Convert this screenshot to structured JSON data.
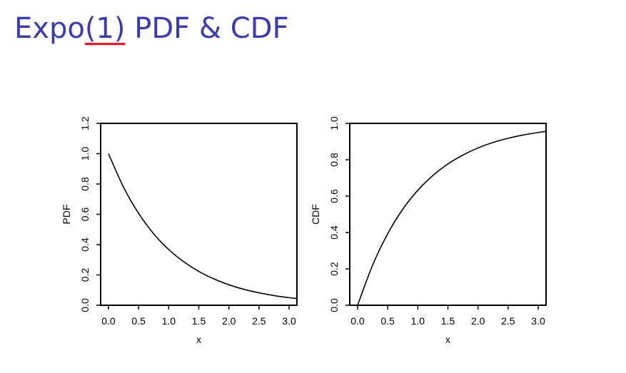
{
  "title": {
    "prefix": "Expo",
    "underlined": "(1)",
    "suffix": " PDF & CDF"
  },
  "chart_data": [
    {
      "type": "line",
      "xlabel": "x",
      "ylabel": "PDF",
      "xlim": [
        -0.13,
        3.13
      ],
      "ylim": [
        0,
        1.2
      ],
      "xticks": [
        "0.0",
        "0.5",
        "1.0",
        "1.5",
        "2.0",
        "2.5",
        "3.0"
      ],
      "yticks": [
        "0.0",
        "0.2",
        "0.4",
        "0.6",
        "0.8",
        "1.0",
        "1.2"
      ],
      "grid": false,
      "series": [
        {
          "x": [
            0,
            0.25,
            0.5,
            0.75,
            1.0,
            1.25,
            1.5,
            1.75,
            2.0,
            2.25,
            2.5,
            2.75,
            3.0,
            3.13
          ],
          "y": [
            1.0,
            0.779,
            0.607,
            0.472,
            0.368,
            0.287,
            0.223,
            0.174,
            0.135,
            0.105,
            0.082,
            0.064,
            0.05,
            0.044
          ]
        }
      ]
    },
    {
      "type": "line",
      "xlabel": "x",
      "ylabel": "CDF",
      "xlim": [
        -0.13,
        3.13
      ],
      "ylim": [
        0,
        1.0
      ],
      "xticks": [
        "0.0",
        "0.5",
        "1.0",
        "1.5",
        "2.0",
        "2.5",
        "3.0"
      ],
      "yticks": [
        "0.0",
        "0.2",
        "0.4",
        "0.6",
        "0.8",
        "1.0"
      ],
      "grid": false,
      "series": [
        {
          "x": [
            0,
            0.25,
            0.5,
            0.75,
            1.0,
            1.25,
            1.5,
            1.75,
            2.0,
            2.25,
            2.5,
            2.75,
            3.0,
            3.13
          ],
          "y": [
            0.0,
            0.221,
            0.393,
            0.528,
            0.632,
            0.713,
            0.777,
            0.826,
            0.865,
            0.895,
            0.918,
            0.936,
            0.95,
            0.956
          ]
        }
      ]
    }
  ]
}
